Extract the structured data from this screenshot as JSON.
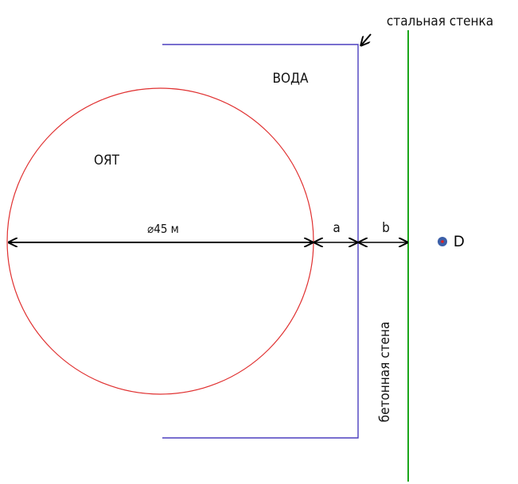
{
  "labels": {
    "steel_wall": "стальная стенка",
    "water": "ВОДА",
    "fuel": "ОЯТ",
    "diameter": "⌀45 м",
    "gap_a": "a",
    "gap_b": "b",
    "point": "D",
    "concrete_wall": "бетонная стена"
  }
}
